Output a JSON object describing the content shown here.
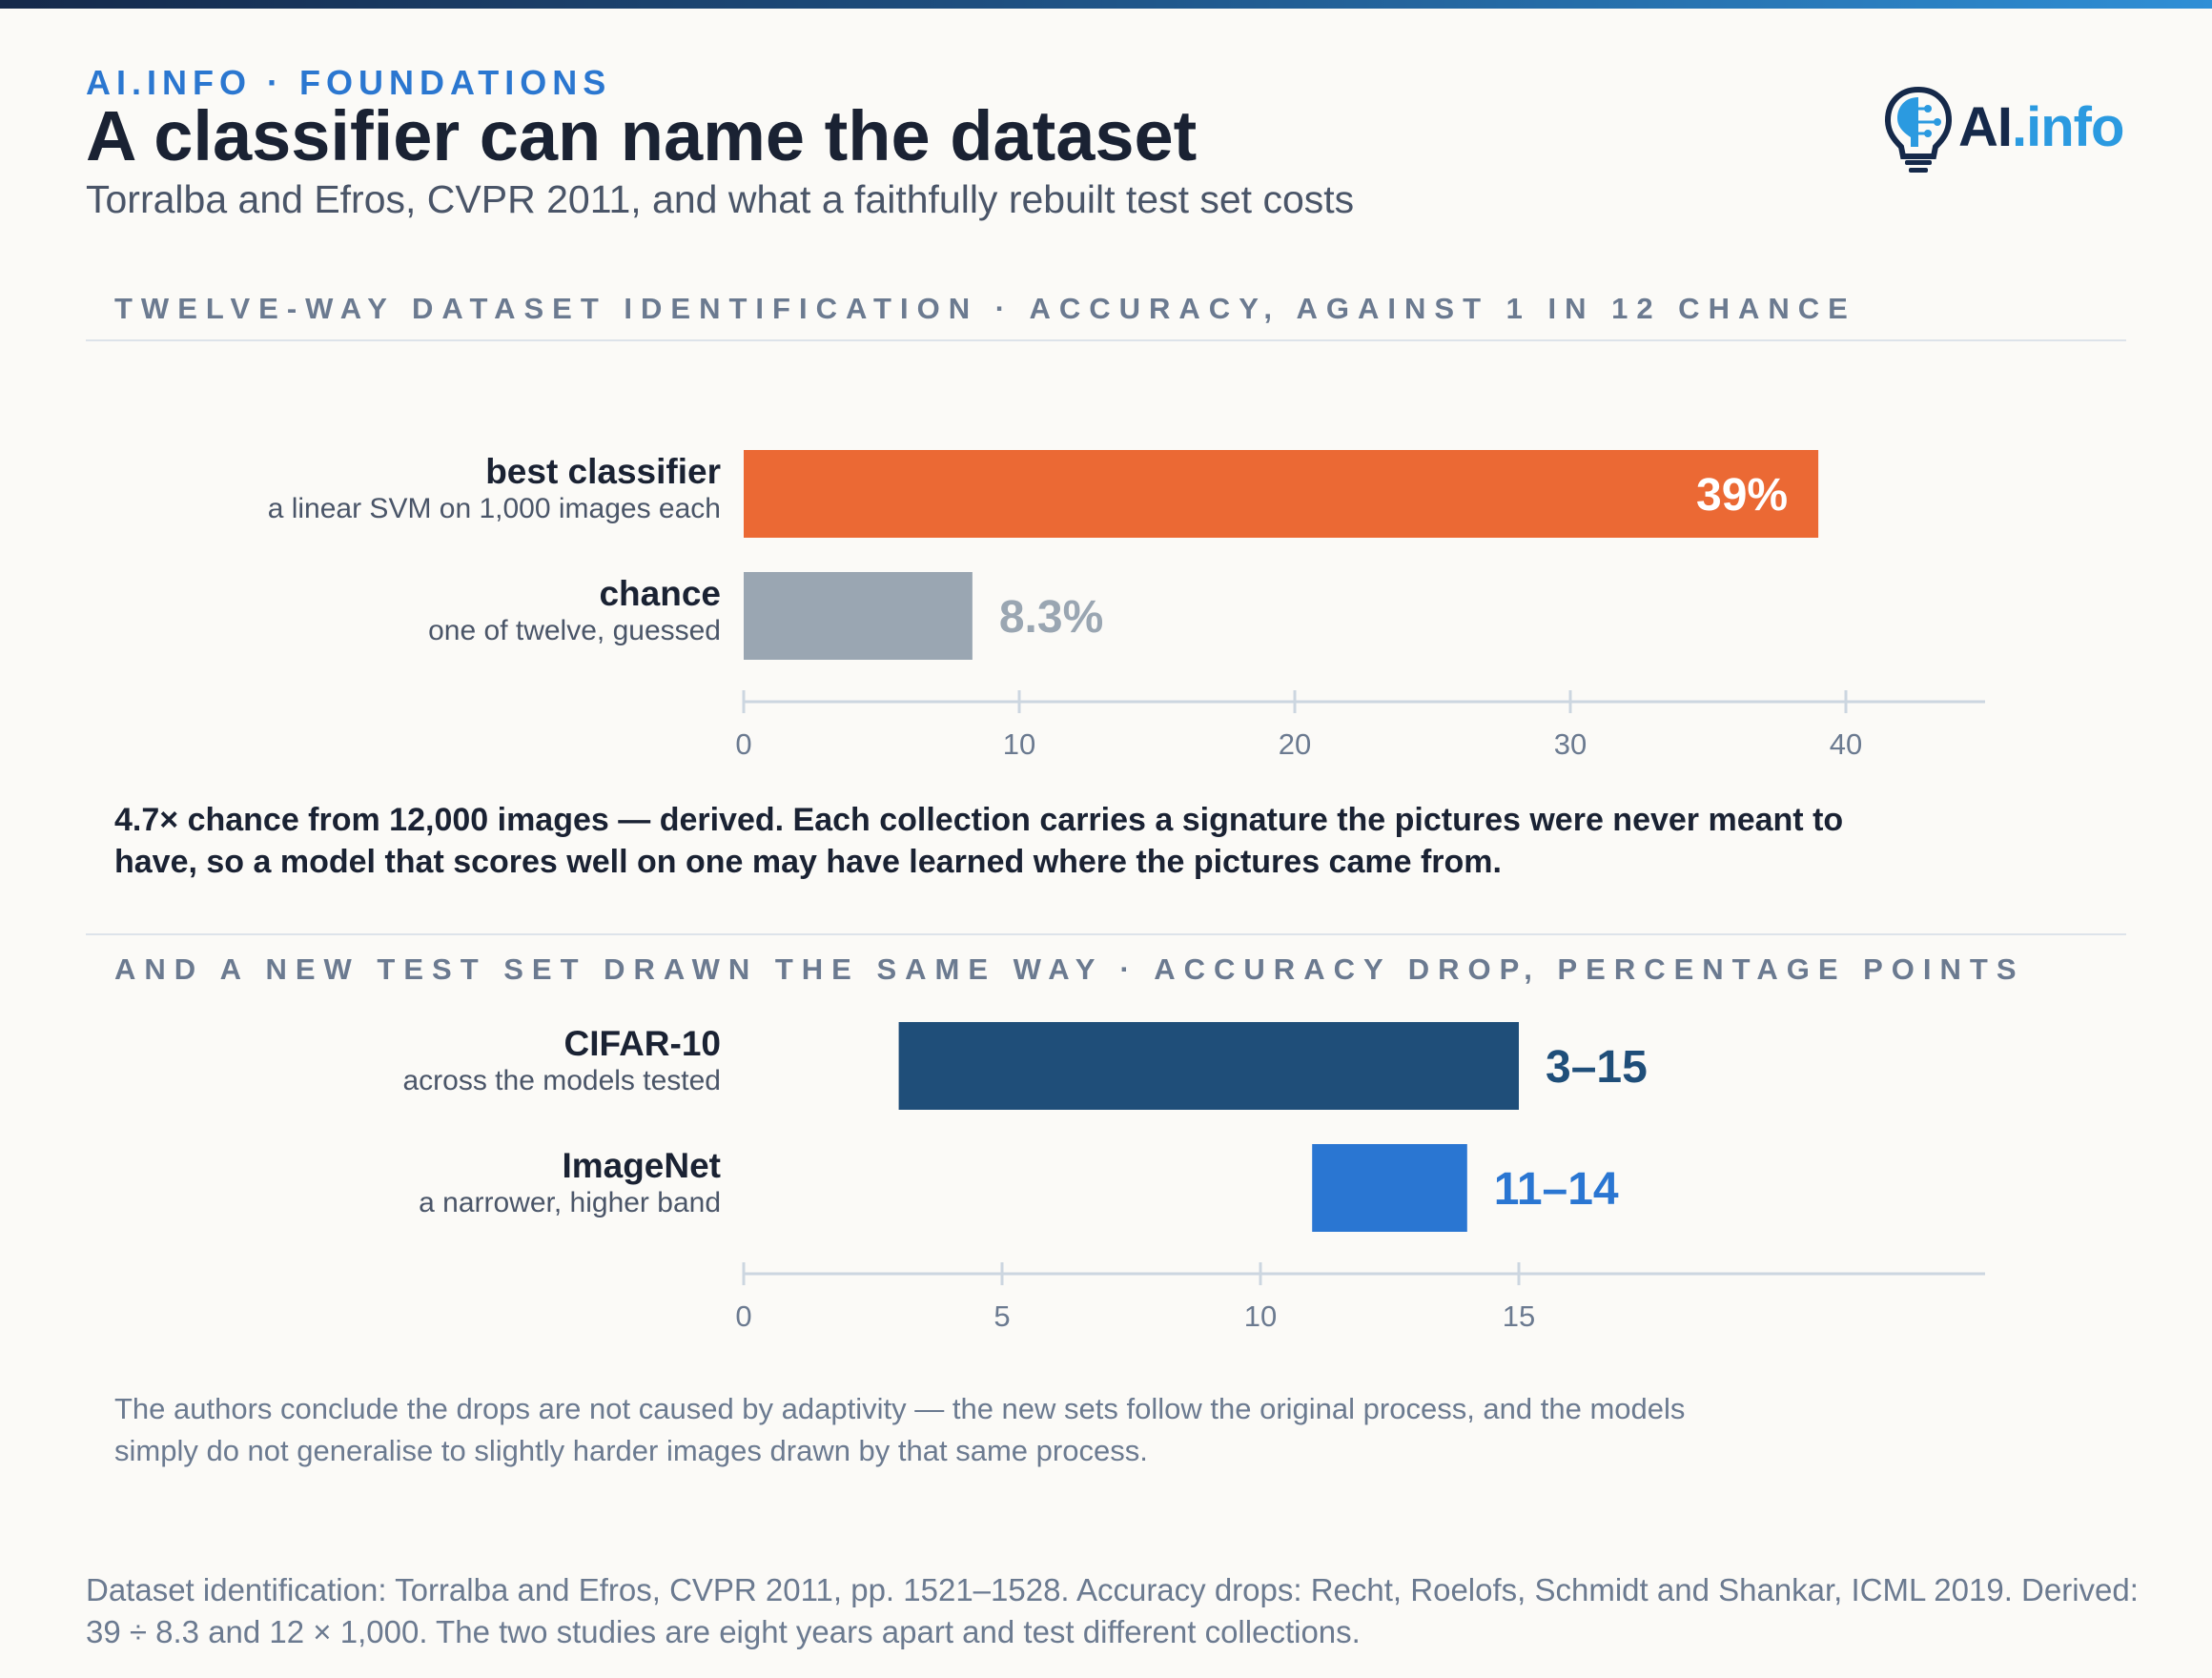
{
  "header": {
    "kicker": "AI.INFO · FOUNDATIONS",
    "title": "A classifier can name the dataset",
    "subtitle": "Torralba and Efros, CVPR 2011, and what a faithfully rebuilt test set costs"
  },
  "logo": {
    "text_ai": "AI",
    "text_info": ".info",
    "icon": "lightbulb-brain-icon"
  },
  "section1": {
    "label": "TWELVE-WAY DATASET IDENTIFICATION · ACCURACY, AGAINST 1 IN 12 CHANCE",
    "rows": [
      {
        "main": "best classifier",
        "sub": "a linear SVM on 1,000 images each"
      },
      {
        "main": "chance",
        "sub": "one of twelve, guessed"
      }
    ]
  },
  "note_bold": "4.7× chance from 12,000 images — derived. Each collection carries a signature the pictures were never meant to have, so a model that scores well on one may have learned where the pictures came from.",
  "section2": {
    "label": "AND A NEW TEST SET DRAWN THE SAME WAY · ACCURACY DROP, PERCENTAGE POINTS",
    "rows": [
      {
        "main": "CIFAR-10",
        "sub": "across the models tested"
      },
      {
        "main": "ImageNet",
        "sub": "a narrower, higher band"
      }
    ]
  },
  "note_light": "The authors conclude the drops are not caused by adaptivity — the new sets follow the original process, and the models simply do not generalise to slightly harder images drawn by that same process.",
  "footer": "Dataset identification: Torralba and Efros, CVPR 2011, pp. 1521–1528. Accuracy drops: Recht, Roelofs, Schmidt and Shankar, ICML 2019. Derived: 39 ÷ 8.3 and 12 × 1,000. The two studies are eight years apart and test different collections.",
  "colors": {
    "orange": "#eb6934",
    "gray": "#9aa6b2",
    "navy": "#1f4e79",
    "blue": "#2a76d2",
    "axis": "#ccd6e0"
  },
  "chart_data": [
    {
      "type": "bar",
      "orientation": "horizontal",
      "categories": [
        "best classifier",
        "chance"
      ],
      "values": [
        39,
        8.3
      ],
      "value_labels": [
        "39%",
        "8.3%"
      ],
      "xlim": [
        0,
        45
      ],
      "ticks": [
        0,
        10,
        20,
        30,
        40
      ],
      "colors": [
        "#eb6934",
        "#9aa6b2"
      ]
    },
    {
      "type": "bar",
      "orientation": "horizontal",
      "range_bars": true,
      "categories": [
        "CIFAR-10",
        "ImageNet"
      ],
      "ranges": [
        [
          3,
          15
        ],
        [
          11,
          14
        ]
      ],
      "value_labels": [
        "3–15",
        "11–14"
      ],
      "xlim": [
        0,
        16
      ],
      "ticks": [
        0,
        5,
        10,
        15
      ],
      "colors": [
        "#1f4e79",
        "#2a76d2"
      ]
    }
  ]
}
